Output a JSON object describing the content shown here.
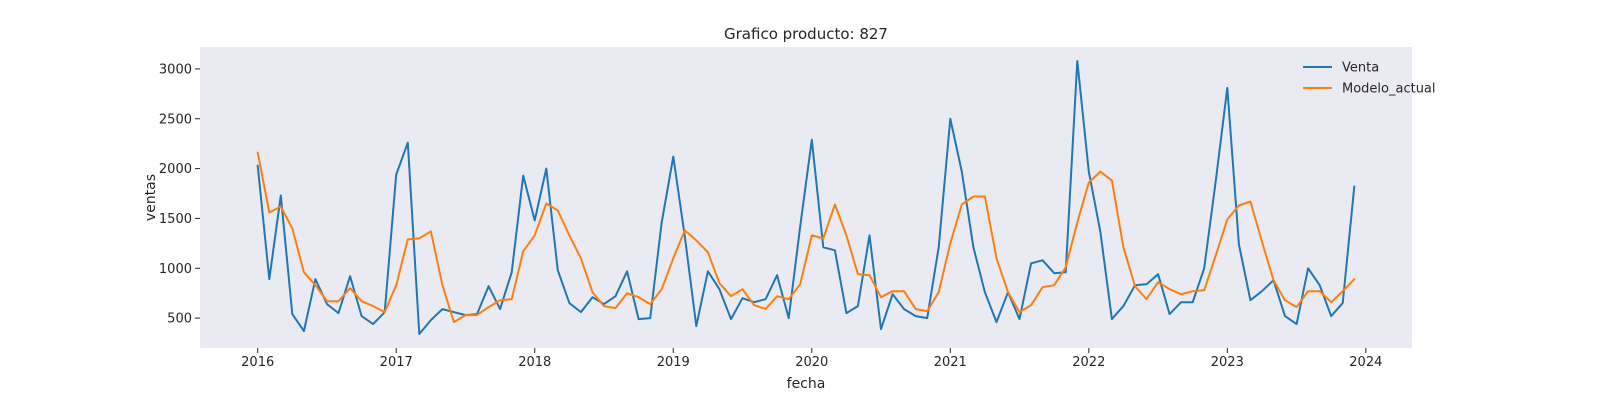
{
  "chart_data": {
    "type": "line",
    "title": "Grafico producto: 827",
    "xlabel": "fecha",
    "ylabel": "ventas",
    "x_start": "2016-01",
    "x_frequency": "monthly",
    "x_tick_labels": [
      "2016",
      "2017",
      "2018",
      "2019",
      "2020",
      "2021",
      "2022",
      "2023",
      "2024"
    ],
    "y_ticks": [
      500,
      1000,
      1500,
      2000,
      2500,
      3000
    ],
    "xlim": [
      "2015-08",
      "2024-05"
    ],
    "ylim": [
      200,
      3220
    ],
    "grid": false,
    "legend_position": "top-right",
    "background_color": "#eaeaf2",
    "series": [
      {
        "name": "Venta",
        "color": "#1f77b4",
        "values": [
          2030,
          890,
          1730,
          540,
          370,
          890,
          640,
          550,
          920,
          520,
          440,
          560,
          1940,
          2260,
          340,
          480,
          590,
          560,
          530,
          540,
          820,
          590,
          960,
          1930,
          1480,
          2000,
          980,
          650,
          560,
          710,
          640,
          720,
          970,
          490,
          500,
          1460,
          2120,
          1320,
          420,
          970,
          790,
          490,
          700,
          660,
          690,
          930,
          500,
          1420,
          2290,
          1210,
          1180,
          550,
          620,
          1330,
          390,
          740,
          590,
          520,
          500,
          1210,
          2500,
          1970,
          1210,
          760,
          460,
          760,
          490,
          1050,
          1080,
          950,
          960,
          3080,
          1970,
          1370,
          490,
          620,
          830,
          840,
          940,
          540,
          660,
          660,
          1000,
          1880,
          2810,
          1240,
          680,
          770,
          880,
          520,
          440,
          1000,
          830,
          520,
          650,
          1820
        ]
      },
      {
        "name": "Modelo_actual",
        "color": "#ff7f0e",
        "values": [
          2160,
          1560,
          1620,
          1400,
          960,
          830,
          670,
          670,
          800,
          670,
          620,
          560,
          830,
          1290,
          1300,
          1370,
          830,
          460,
          530,
          530,
          610,
          680,
          690,
          1170,
          1330,
          1650,
          1580,
          1330,
          1100,
          760,
          620,
          600,
          750,
          710,
          640,
          790,
          1100,
          1380,
          1280,
          1160,
          850,
          720,
          790,
          630,
          590,
          720,
          690,
          840,
          1330,
          1300,
          1640,
          1330,
          940,
          930,
          710,
          770,
          770,
          590,
          570,
          760,
          1250,
          1640,
          1720,
          1720,
          1100,
          760,
          560,
          630,
          810,
          830,
          1010,
          1460,
          1860,
          1970,
          1880,
          1210,
          820,
          690,
          860,
          790,
          740,
          770,
          780,
          1130,
          1490,
          1630,
          1670,
          1270,
          880,
          680,
          610,
          770,
          770,
          660,
          770,
          890
        ]
      }
    ]
  }
}
